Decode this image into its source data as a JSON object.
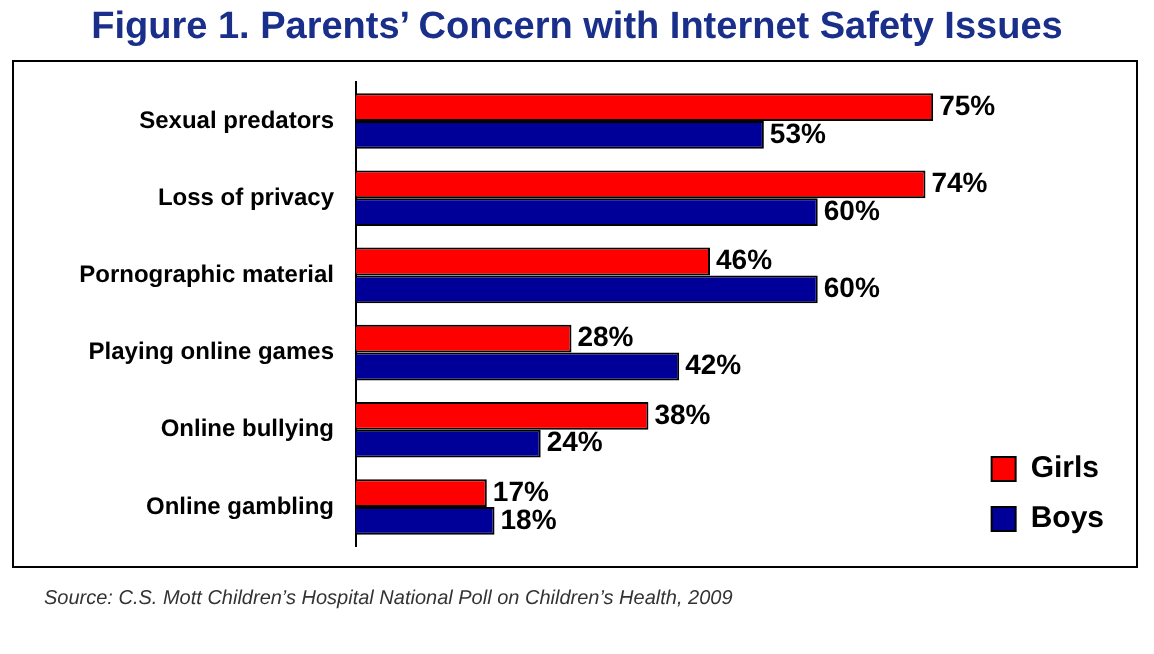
{
  "chart_data": {
    "type": "bar",
    "orientation": "horizontal",
    "title": "Figure 1. Parents’ Concern with Internet Safety Issues",
    "categories": [
      "Sexual predators",
      "Loss of privacy",
      "Pornographic material",
      "Playing online games",
      "Online bullying",
      "Online gambling"
    ],
    "series": [
      {
        "name": "Girls",
        "color": "#ff0000",
        "values": [
          75,
          74,
          46,
          28,
          38,
          17
        ],
        "value_labels": [
          "75%",
          "74%",
          "46%",
          "28%",
          "38%",
          "17%"
        ]
      },
      {
        "name": "Boys",
        "color": "#000099",
        "values": [
          53,
          60,
          60,
          42,
          24,
          18
        ],
        "value_labels": [
          "53%",
          "60%",
          "60%",
          "42%",
          "24%",
          "18%"
        ]
      }
    ],
    "tick_labels": "y",
    "legend": "bottom right",
    "annotations": [
      "Source: C.S. Mott Children’s Hospital National Poll on Children’s Health, 2009"
    ]
  }
}
